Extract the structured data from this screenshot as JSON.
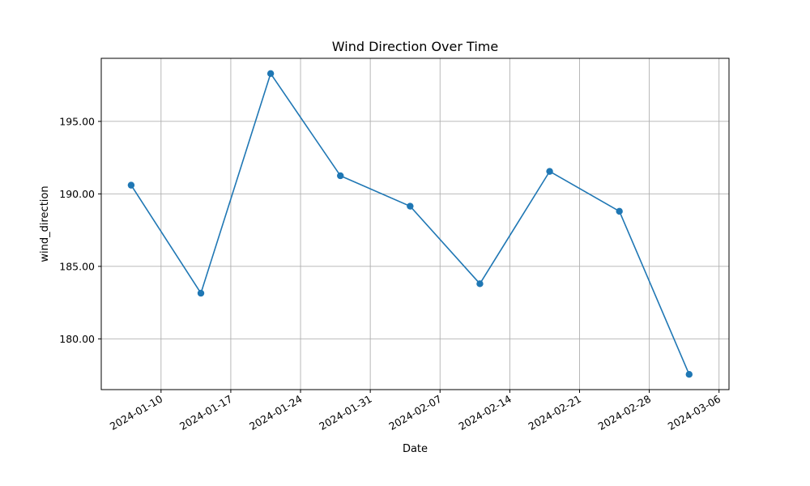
{
  "chart_data": {
    "type": "line",
    "title": "Wind Direction Over Time",
    "xlabel": "Date",
    "ylabel": "wind_direction",
    "x": [
      "2024-01-07",
      "2024-01-14",
      "2024-01-21",
      "2024-01-28",
      "2024-02-04",
      "2024-02-11",
      "2024-02-18",
      "2024-02-25",
      "2024-03-03"
    ],
    "series": [
      {
        "values": [
          190.6,
          183.15,
          198.3,
          191.25,
          189.15,
          183.8,
          191.55,
          188.8,
          177.55
        ],
        "color": "#1f77b4",
        "marker": "circle"
      }
    ],
    "xlim": [
      "2024-01-04",
      "2024-03-07"
    ],
    "ylim": [
      176.5,
      199.35
    ],
    "x_ticks": [
      "2024-01-10",
      "2024-01-17",
      "2024-01-24",
      "2024-01-31",
      "2024-02-07",
      "2024-02-14",
      "2024-02-21",
      "2024-02-28",
      "2024-03-06"
    ],
    "y_ticks": [
      "180.00",
      "185.00",
      "190.00",
      "195.00"
    ],
    "grid": true,
    "legend": "none"
  }
}
